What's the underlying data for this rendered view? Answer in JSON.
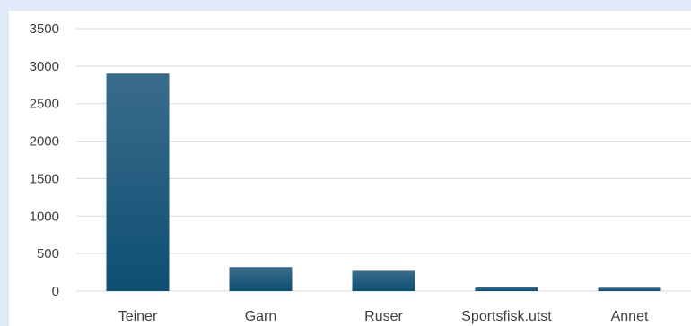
{
  "colors": {
    "background": "#dfe9f7",
    "plot_background": "#ffffff",
    "bar_top": "#3b6c8c",
    "bar_bottom": "#0d4f72",
    "gridline": "#d9d9d9",
    "text": "#404040"
  },
  "chart_data": {
    "type": "bar",
    "title": "",
    "xlabel": "",
    "ylabel": "",
    "categories": [
      "Teiner",
      "Garn",
      "Ruser",
      "Sportsfisk.utst",
      "Annet"
    ],
    "values": [
      2900,
      320,
      270,
      50,
      45
    ],
    "ylim": [
      0,
      3500
    ],
    "yticks": [
      0,
      500,
      1000,
      1500,
      2000,
      2500,
      3000,
      3500
    ],
    "grid": true,
    "legend": "none"
  }
}
